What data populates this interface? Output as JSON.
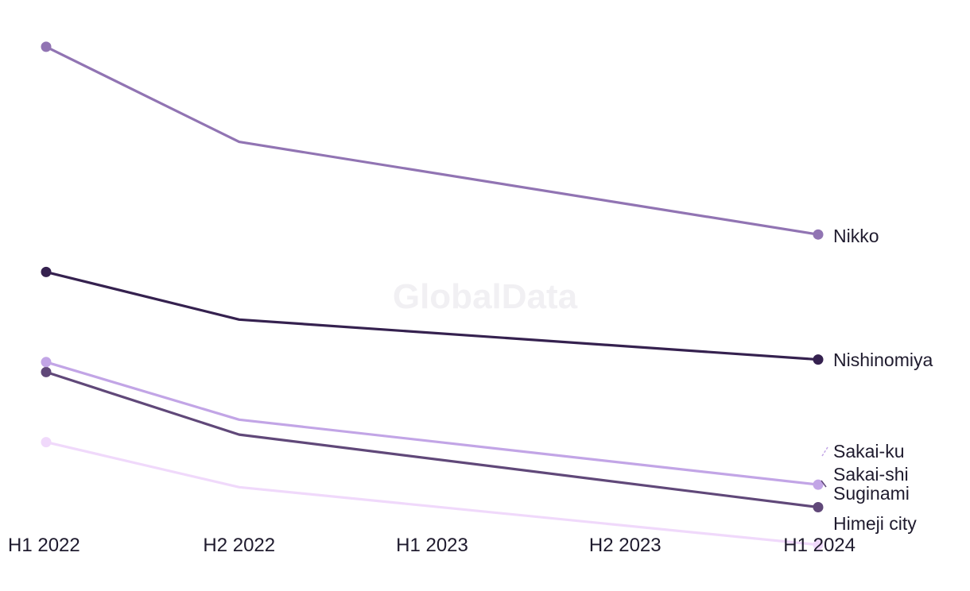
{
  "watermark": "GlobalData",
  "chart_data": {
    "type": "line",
    "categories": [
      "H1 2022",
      "H2 2022",
      "H1 2023",
      "H2 2023",
      "H1 2024"
    ],
    "ylim": [
      0,
      100
    ],
    "grid": false,
    "legend": "direct-labels-right",
    "series": [
      {
        "name": "Nikko",
        "color": "#9174b3",
        "values": [
          97,
          78,
          null,
          null,
          59.5
        ]
      },
      {
        "name": "Nishinomiya",
        "color": "#35214f",
        "values": [
          52,
          42.5,
          null,
          null,
          34.5
        ]
      },
      {
        "name": "Sakai-ku",
        "color": "#c2a5e6",
        "values": [
          34,
          22.5,
          null,
          null,
          9.5
        ]
      },
      {
        "name": "Sakai-shi",
        "color": "#604879",
        "values": [
          32,
          19.5,
          null,
          null,
          5
        ]
      },
      {
        "name": "Suginami",
        "color": "#604879",
        "values": [
          null,
          null,
          null,
          null,
          null
        ]
      },
      {
        "name": "Himeji city",
        "color": "#f0d9fb",
        "values": [
          18,
          9,
          null,
          null,
          -2.5
        ]
      }
    ]
  }
}
